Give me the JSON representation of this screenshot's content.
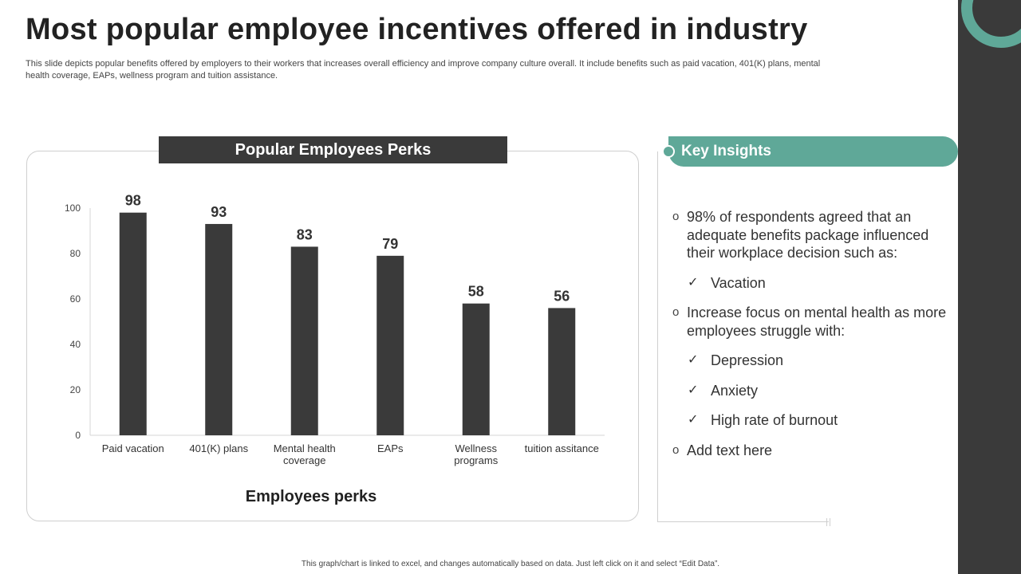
{
  "slide": {
    "title": "Most popular employee incentives offered in industry",
    "description": "This slide depicts popular benefits offered by employers to their workers that increases overall efficiency and improve company culture overall. It include benefits such as paid vacation, 401(K) plans, mental health coverage, EAPs,  wellness program and tuition assistance.",
    "footer": "This graph/chart is linked to excel, and changes automatically based on data. Just left click on it and select “Edit Data”."
  },
  "colors": {
    "accent": "#5fa898",
    "dark": "#3a3a3a",
    "bar": "#3a3a3a"
  },
  "chart_data": {
    "type": "bar",
    "title": "Popular Employees Perks",
    "xlabel": "Employees perks",
    "ylabel": "",
    "categories": [
      "Paid vacation",
      "401(K) plans",
      "Mental health coverage",
      "EAPs",
      "Wellness programs",
      "tuition assitance"
    ],
    "category_lines": [
      [
        "Paid vacation"
      ],
      [
        "401(K) plans"
      ],
      [
        "Mental health",
        "coverage"
      ],
      [
        "EAPs"
      ],
      [
        "Wellness",
        "programs"
      ],
      [
        "tuition assitance"
      ]
    ],
    "values": [
      98,
      93,
      83,
      79,
      58,
      56
    ],
    "ylim": [
      0,
      100
    ],
    "yticks": [
      0,
      20,
      40,
      60,
      80,
      100
    ],
    "grid": false,
    "data_labels": true
  },
  "insights": {
    "title": "Key Insights",
    "items": [
      {
        "type": "bullet",
        "marker": "o",
        "text": "98% of respondents agreed that an adequate benefits package influenced their workplace decision such as:"
      },
      {
        "type": "check",
        "marker": "✓",
        "text": "Vacation"
      },
      {
        "type": "bullet",
        "marker": "o",
        "text": "Increase focus on mental health as more employees struggle with:"
      },
      {
        "type": "check",
        "marker": "✓",
        "text": "Depression"
      },
      {
        "type": "check",
        "marker": "✓",
        "text": "Anxiety"
      },
      {
        "type": "check",
        "marker": "✓",
        "text": "High rate of burnout"
      },
      {
        "type": "bullet",
        "marker": "o",
        "text": "Add text here"
      }
    ]
  }
}
